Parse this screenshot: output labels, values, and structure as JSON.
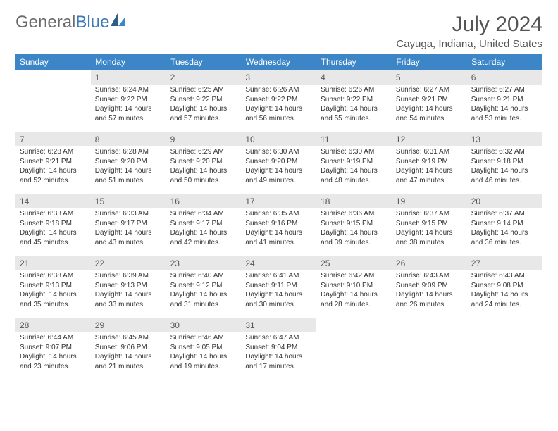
{
  "logo": {
    "general": "General",
    "blue": "Blue"
  },
  "title": "July 2024",
  "location": "Cayuga, Indiana, United States",
  "header_bg": "#3c86c7",
  "header_fg": "#ffffff",
  "row_border": "#2f5d8a",
  "daynum_bg": "#e8e8e8",
  "weekdays": [
    "Sunday",
    "Monday",
    "Tuesday",
    "Wednesday",
    "Thursday",
    "Friday",
    "Saturday"
  ],
  "weeks": [
    [
      {
        "day": "",
        "sunrise": "",
        "sunset": "",
        "daylight": ""
      },
      {
        "day": "1",
        "sunrise": "Sunrise: 6:24 AM",
        "sunset": "Sunset: 9:22 PM",
        "daylight": "Daylight: 14 hours and 57 minutes."
      },
      {
        "day": "2",
        "sunrise": "Sunrise: 6:25 AM",
        "sunset": "Sunset: 9:22 PM",
        "daylight": "Daylight: 14 hours and 57 minutes."
      },
      {
        "day": "3",
        "sunrise": "Sunrise: 6:26 AM",
        "sunset": "Sunset: 9:22 PM",
        "daylight": "Daylight: 14 hours and 56 minutes."
      },
      {
        "day": "4",
        "sunrise": "Sunrise: 6:26 AM",
        "sunset": "Sunset: 9:22 PM",
        "daylight": "Daylight: 14 hours and 55 minutes."
      },
      {
        "day": "5",
        "sunrise": "Sunrise: 6:27 AM",
        "sunset": "Sunset: 9:21 PM",
        "daylight": "Daylight: 14 hours and 54 minutes."
      },
      {
        "day": "6",
        "sunrise": "Sunrise: 6:27 AM",
        "sunset": "Sunset: 9:21 PM",
        "daylight": "Daylight: 14 hours and 53 minutes."
      }
    ],
    [
      {
        "day": "7",
        "sunrise": "Sunrise: 6:28 AM",
        "sunset": "Sunset: 9:21 PM",
        "daylight": "Daylight: 14 hours and 52 minutes."
      },
      {
        "day": "8",
        "sunrise": "Sunrise: 6:28 AM",
        "sunset": "Sunset: 9:20 PM",
        "daylight": "Daylight: 14 hours and 51 minutes."
      },
      {
        "day": "9",
        "sunrise": "Sunrise: 6:29 AM",
        "sunset": "Sunset: 9:20 PM",
        "daylight": "Daylight: 14 hours and 50 minutes."
      },
      {
        "day": "10",
        "sunrise": "Sunrise: 6:30 AM",
        "sunset": "Sunset: 9:20 PM",
        "daylight": "Daylight: 14 hours and 49 minutes."
      },
      {
        "day": "11",
        "sunrise": "Sunrise: 6:30 AM",
        "sunset": "Sunset: 9:19 PM",
        "daylight": "Daylight: 14 hours and 48 minutes."
      },
      {
        "day": "12",
        "sunrise": "Sunrise: 6:31 AM",
        "sunset": "Sunset: 9:19 PM",
        "daylight": "Daylight: 14 hours and 47 minutes."
      },
      {
        "day": "13",
        "sunrise": "Sunrise: 6:32 AM",
        "sunset": "Sunset: 9:18 PM",
        "daylight": "Daylight: 14 hours and 46 minutes."
      }
    ],
    [
      {
        "day": "14",
        "sunrise": "Sunrise: 6:33 AM",
        "sunset": "Sunset: 9:18 PM",
        "daylight": "Daylight: 14 hours and 45 minutes."
      },
      {
        "day": "15",
        "sunrise": "Sunrise: 6:33 AM",
        "sunset": "Sunset: 9:17 PM",
        "daylight": "Daylight: 14 hours and 43 minutes."
      },
      {
        "day": "16",
        "sunrise": "Sunrise: 6:34 AM",
        "sunset": "Sunset: 9:17 PM",
        "daylight": "Daylight: 14 hours and 42 minutes."
      },
      {
        "day": "17",
        "sunrise": "Sunrise: 6:35 AM",
        "sunset": "Sunset: 9:16 PM",
        "daylight": "Daylight: 14 hours and 41 minutes."
      },
      {
        "day": "18",
        "sunrise": "Sunrise: 6:36 AM",
        "sunset": "Sunset: 9:15 PM",
        "daylight": "Daylight: 14 hours and 39 minutes."
      },
      {
        "day": "19",
        "sunrise": "Sunrise: 6:37 AM",
        "sunset": "Sunset: 9:15 PM",
        "daylight": "Daylight: 14 hours and 38 minutes."
      },
      {
        "day": "20",
        "sunrise": "Sunrise: 6:37 AM",
        "sunset": "Sunset: 9:14 PM",
        "daylight": "Daylight: 14 hours and 36 minutes."
      }
    ],
    [
      {
        "day": "21",
        "sunrise": "Sunrise: 6:38 AM",
        "sunset": "Sunset: 9:13 PM",
        "daylight": "Daylight: 14 hours and 35 minutes."
      },
      {
        "day": "22",
        "sunrise": "Sunrise: 6:39 AM",
        "sunset": "Sunset: 9:13 PM",
        "daylight": "Daylight: 14 hours and 33 minutes."
      },
      {
        "day": "23",
        "sunrise": "Sunrise: 6:40 AM",
        "sunset": "Sunset: 9:12 PM",
        "daylight": "Daylight: 14 hours and 31 minutes."
      },
      {
        "day": "24",
        "sunrise": "Sunrise: 6:41 AM",
        "sunset": "Sunset: 9:11 PM",
        "daylight": "Daylight: 14 hours and 30 minutes."
      },
      {
        "day": "25",
        "sunrise": "Sunrise: 6:42 AM",
        "sunset": "Sunset: 9:10 PM",
        "daylight": "Daylight: 14 hours and 28 minutes."
      },
      {
        "day": "26",
        "sunrise": "Sunrise: 6:43 AM",
        "sunset": "Sunset: 9:09 PM",
        "daylight": "Daylight: 14 hours and 26 minutes."
      },
      {
        "day": "27",
        "sunrise": "Sunrise: 6:43 AM",
        "sunset": "Sunset: 9:08 PM",
        "daylight": "Daylight: 14 hours and 24 minutes."
      }
    ],
    [
      {
        "day": "28",
        "sunrise": "Sunrise: 6:44 AM",
        "sunset": "Sunset: 9:07 PM",
        "daylight": "Daylight: 14 hours and 23 minutes."
      },
      {
        "day": "29",
        "sunrise": "Sunrise: 6:45 AM",
        "sunset": "Sunset: 9:06 PM",
        "daylight": "Daylight: 14 hours and 21 minutes."
      },
      {
        "day": "30",
        "sunrise": "Sunrise: 6:46 AM",
        "sunset": "Sunset: 9:05 PM",
        "daylight": "Daylight: 14 hours and 19 minutes."
      },
      {
        "day": "31",
        "sunrise": "Sunrise: 6:47 AM",
        "sunset": "Sunset: 9:04 PM",
        "daylight": "Daylight: 14 hours and 17 minutes."
      },
      {
        "day": "",
        "sunrise": "",
        "sunset": "",
        "daylight": ""
      },
      {
        "day": "",
        "sunrise": "",
        "sunset": "",
        "daylight": ""
      },
      {
        "day": "",
        "sunrise": "",
        "sunset": "",
        "daylight": ""
      }
    ]
  ]
}
